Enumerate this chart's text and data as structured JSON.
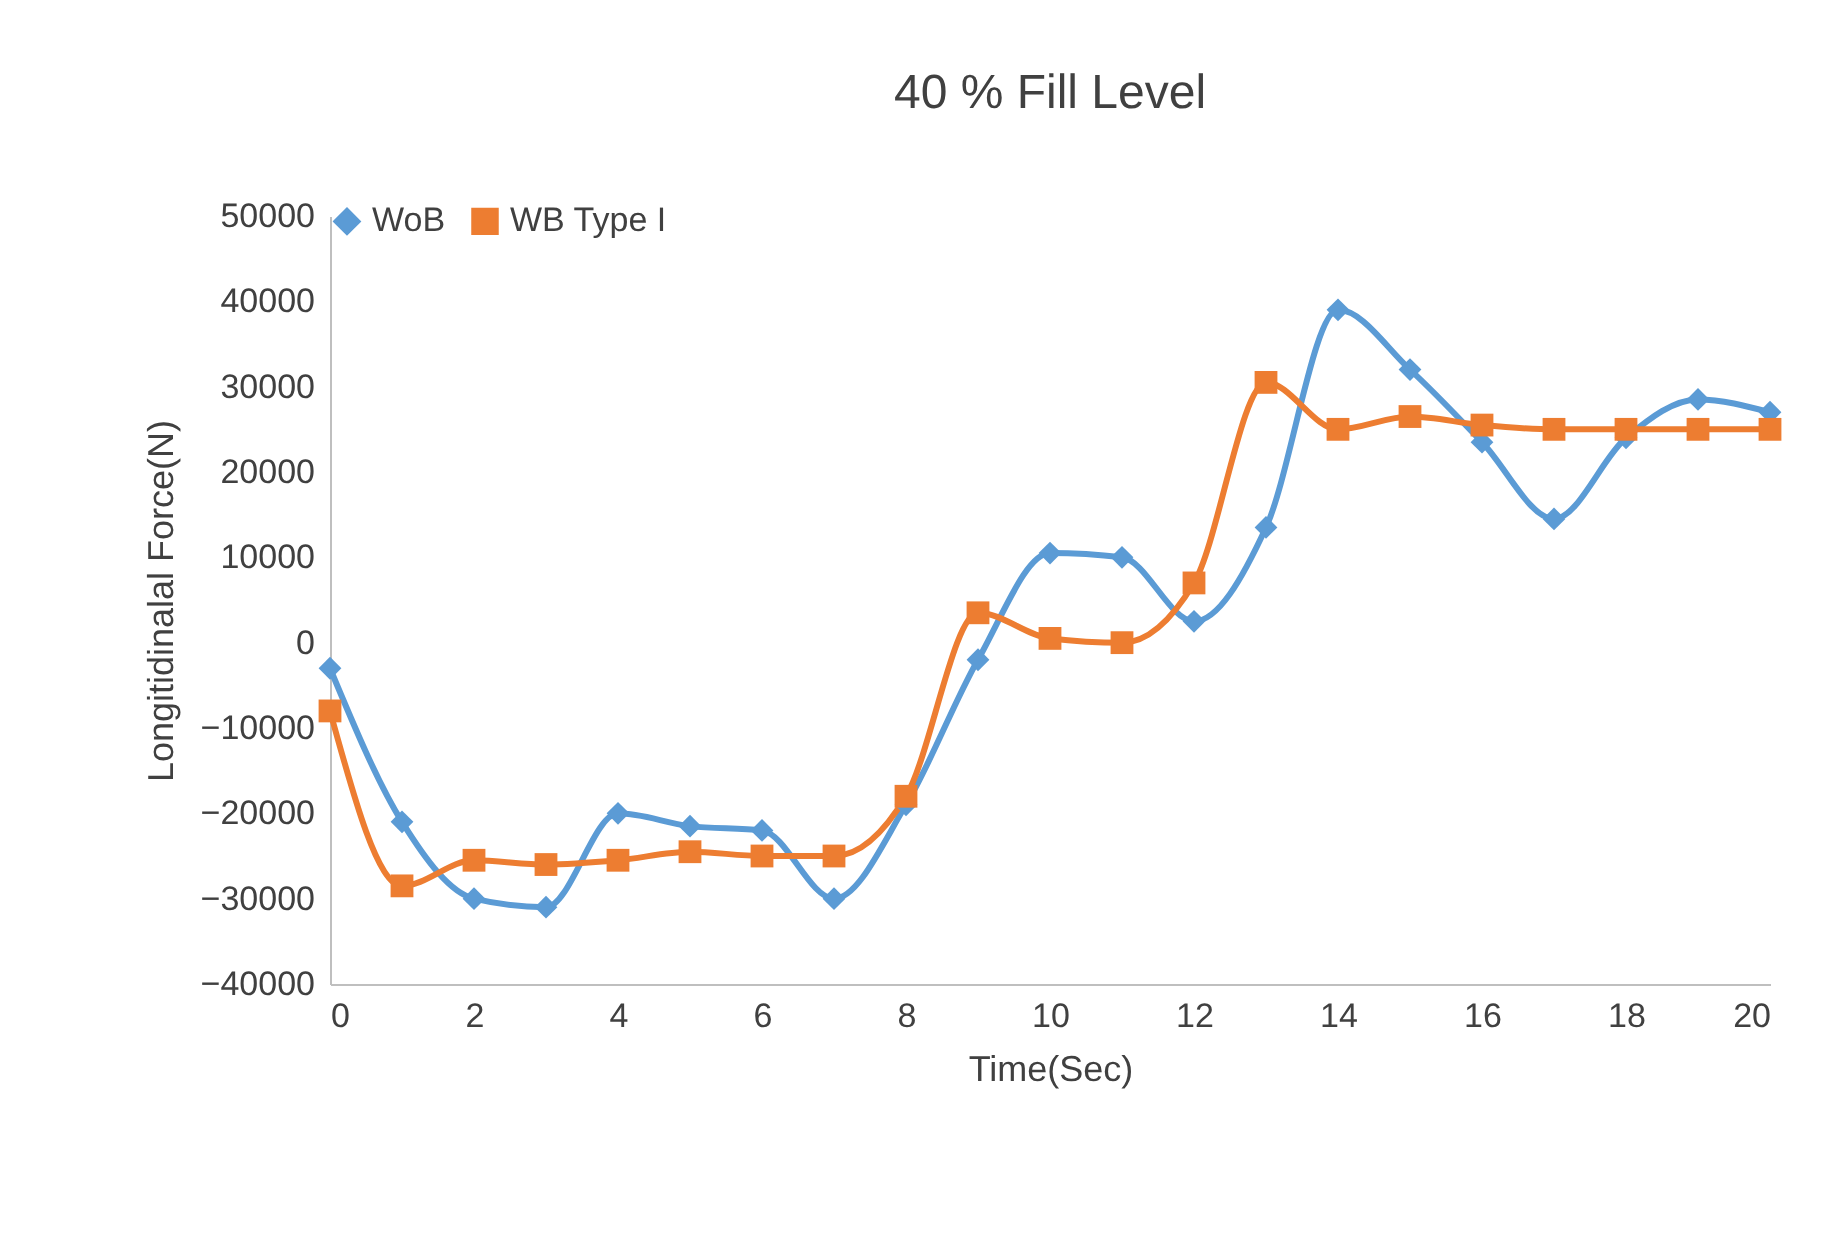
{
  "chart_data": {
    "type": "line",
    "title": "40 % Fill Level",
    "xlabel": "Time(Sec)",
    "ylabel": "Longitidinalal Force(N)",
    "x": [
      0,
      1,
      2,
      3,
      4,
      5,
      6,
      7,
      8,
      9,
      10,
      11,
      12,
      13,
      14,
      15,
      16,
      17,
      18,
      19,
      20
    ],
    "series": [
      {
        "name": "WoB",
        "color": "#5b9bd5",
        "marker": "diamond",
        "values": [
          -3000,
          -21000,
          -30000,
          -31000,
          -20000,
          -21500,
          -22000,
          -30000,
          -19000,
          -2000,
          10500,
          10000,
          2500,
          13500,
          39000,
          32000,
          23500,
          14500,
          24000,
          28500,
          27000
        ]
      },
      {
        "name": "WB Type I",
        "color": "#ed7d31",
        "marker": "square",
        "values": [
          -8000,
          -28500,
          -25500,
          -26000,
          -25500,
          -24500,
          -25000,
          -25000,
          -18000,
          3500,
          500,
          0,
          7000,
          30500,
          25000,
          26500,
          25500,
          25000,
          25000,
          25000,
          25000
        ]
      }
    ],
    "xlim": [
      0,
      20
    ],
    "xticks": [
      0,
      2,
      4,
      6,
      8,
      10,
      12,
      14,
      16,
      18,
      20
    ],
    "ylim": [
      -40000,
      50000
    ],
    "yticks": [
      -40000,
      -30000,
      -20000,
      -10000,
      0,
      10000,
      20000,
      30000,
      40000,
      50000
    ],
    "grid": false,
    "legend": "top",
    "line_style": "solid"
  }
}
